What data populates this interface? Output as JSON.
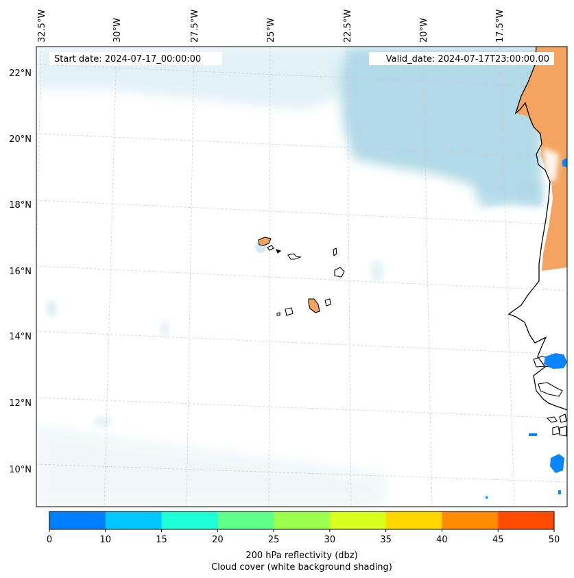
{
  "header": {
    "start_label": "Start date: 2024-07-17_00:00:00",
    "valid_label": "Valid_date: 2024-07-17T23:00:00.00"
  },
  "longitude_labels": [
    "32.5°W",
    "30°W",
    "27.5°W",
    "25°W",
    "22.5°W",
    "20°W",
    "17.5°W"
  ],
  "latitude_labels": [
    "22°N",
    "20°N",
    "18°N",
    "16°N",
    "14°N",
    "12°N",
    "10°N"
  ],
  "colorbar": {
    "ticks": [
      "0",
      "10",
      "15",
      "20",
      "25",
      "30",
      "35",
      "40",
      "45",
      "50"
    ],
    "colors": [
      "#0080ff",
      "#00c8ff",
      "#1effd8",
      "#60ff8c",
      "#9cff50",
      "#d8ff1e",
      "#ffd800",
      "#ff8c00",
      "#ff4c00"
    ],
    "label_line1": "200 hPa reflectivity (dbz)",
    "label_line2": "Cloud cover (white background shading)"
  },
  "colors": {
    "cloud": "#add8e6",
    "land_warm": "#f4a460",
    "echo": "#0a84ff",
    "coast": "#000000",
    "grid": "#c8c8c8"
  }
}
